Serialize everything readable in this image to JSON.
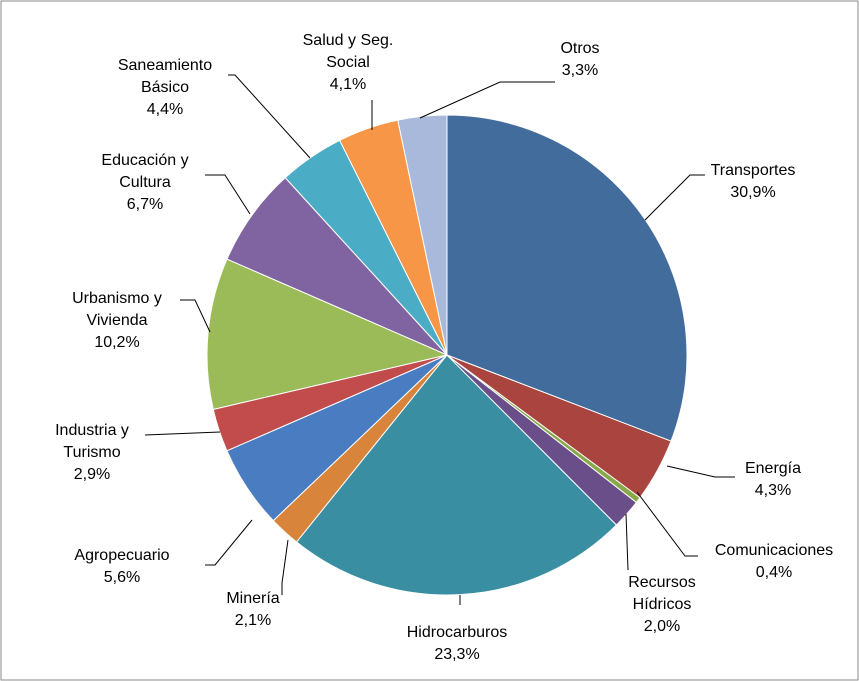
{
  "chart_data": {
    "type": "pie",
    "categories": [
      "Transportes",
      "Energía",
      "Comunicaciones",
      "Recursos Hídricos",
      "Hidrocarburos",
      "Minería",
      "Agropecuario",
      "Industria y Turismo",
      "Urbanismo y Vivienda",
      "Educación y Cultura",
      "Saneamiento Básico",
      "Salud y Seg. Social",
      "Otros"
    ],
    "values": [
      30.9,
      4.3,
      0.4,
      2.0,
      23.3,
      2.1,
      5.6,
      2.9,
      10.2,
      6.7,
      4.4,
      4.1,
      3.3
    ],
    "value_labels": [
      "30,9%",
      "4,3%",
      "0,4%",
      "2,0%",
      "23,3%",
      "2,1%",
      "5,6%",
      "2,9%",
      "10,2%",
      "6,7%",
      "4,4%",
      "4,1%",
      "3,3%"
    ],
    "colors": [
      "#416c9c",
      "#a9443f",
      "#88a84a",
      "#6a4e8a",
      "#3a8ea1",
      "#d9843b",
      "#4a7cc2",
      "#c24c4c",
      "#9bbb59",
      "#8064a2",
      "#4bacc6",
      "#f79646",
      "#a8b9db"
    ]
  }
}
